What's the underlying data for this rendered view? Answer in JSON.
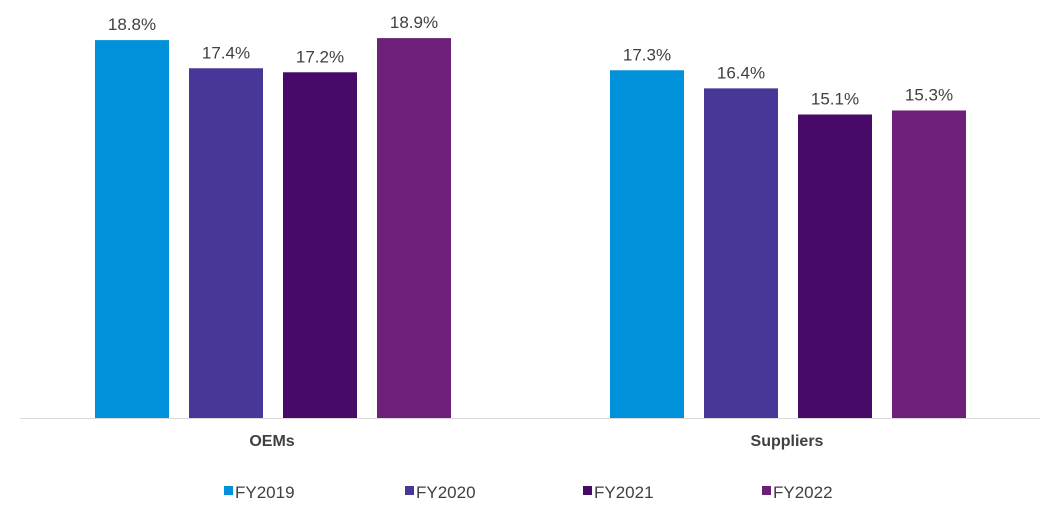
{
  "chart_data": {
    "type": "bar",
    "title": "",
    "xlabel": "",
    "ylabel": "",
    "ylim": [
      0,
      20
    ],
    "grid": false,
    "legend_position": "bottom",
    "categories": [
      "OEMs",
      "Suppliers"
    ],
    "series": [
      {
        "name": "FY2019",
        "color": "#0091DA",
        "values": [
          18.8,
          17.3
        ],
        "labels": [
          "18.8%",
          "17.3%"
        ]
      },
      {
        "name": "FY2020",
        "color": "#483698",
        "values": [
          17.4,
          16.4
        ],
        "labels": [
          "17.4%",
          "16.4%"
        ]
      },
      {
        "name": "FY2021",
        "color": "#470A68",
        "values": [
          17.2,
          15.1
        ],
        "labels": [
          "17.2%",
          "15.1%"
        ]
      },
      {
        "name": "FY2022",
        "color": "#6D2077",
        "values": [
          18.9,
          15.3
        ],
        "labels": [
          "18.9%",
          "15.3%"
        ]
      }
    ]
  }
}
